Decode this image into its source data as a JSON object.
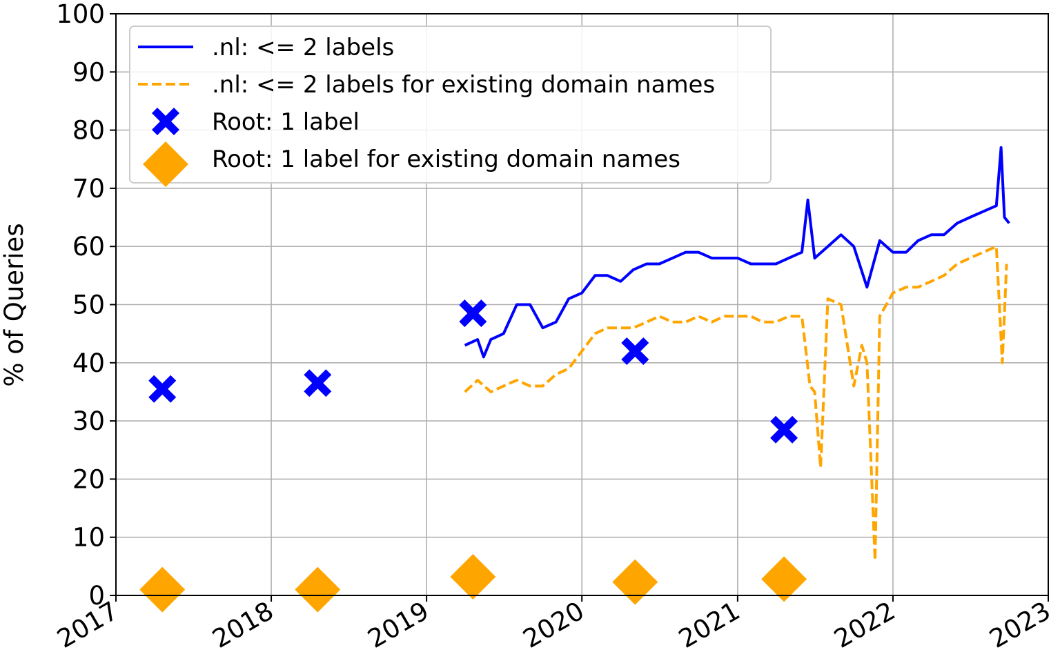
{
  "chart_data": {
    "type": "line",
    "xlabel": "",
    "ylabel": "% of Queries",
    "xlim": [
      "2017-01-01",
      "2023-01-01"
    ],
    "ylim": [
      0,
      100
    ],
    "grid": true,
    "legend_position": "top-left",
    "x_ticks": [
      "2017",
      "2018",
      "2019",
      "2020",
      "2021",
      "2022",
      "2023"
    ],
    "y_ticks": [
      "0",
      "10",
      "20",
      "30",
      "40",
      "50",
      "60",
      "70",
      "80",
      "90",
      "100"
    ],
    "series": [
      {
        "name": ".nl: <= 2 labels",
        "style": "solid-line",
        "color": "#0000ff",
        "points": [
          [
            "2019-04-01",
            43
          ],
          [
            "2019-05-01",
            44
          ],
          [
            "2019-05-15",
            41
          ],
          [
            "2019-06-01",
            44
          ],
          [
            "2019-07-01",
            45
          ],
          [
            "2019-08-01",
            50
          ],
          [
            "2019-09-01",
            50
          ],
          [
            "2019-10-01",
            46
          ],
          [
            "2019-11-01",
            47
          ],
          [
            "2019-12-01",
            51
          ],
          [
            "2020-01-01",
            52
          ],
          [
            "2020-02-01",
            55
          ],
          [
            "2020-03-01",
            55
          ],
          [
            "2020-04-01",
            54
          ],
          [
            "2020-05-01",
            56
          ],
          [
            "2020-06-01",
            57
          ],
          [
            "2020-07-01",
            57
          ],
          [
            "2020-08-01",
            58
          ],
          [
            "2020-09-01",
            59
          ],
          [
            "2020-10-01",
            59
          ],
          [
            "2020-11-01",
            58
          ],
          [
            "2020-12-01",
            58
          ],
          [
            "2021-01-01",
            58
          ],
          [
            "2021-02-01",
            57
          ],
          [
            "2021-03-01",
            57
          ],
          [
            "2021-04-01",
            57
          ],
          [
            "2021-05-01",
            58
          ],
          [
            "2021-06-01",
            59
          ],
          [
            "2021-06-15",
            68
          ],
          [
            "2021-07-01",
            58
          ],
          [
            "2021-08-01",
            60
          ],
          [
            "2021-09-01",
            62
          ],
          [
            "2021-10-01",
            60
          ],
          [
            "2021-11-01",
            53
          ],
          [
            "2021-12-01",
            61
          ],
          [
            "2022-01-01",
            59
          ],
          [
            "2022-02-01",
            59
          ],
          [
            "2022-03-01",
            61
          ],
          [
            "2022-04-01",
            62
          ],
          [
            "2022-05-01",
            62
          ],
          [
            "2022-06-01",
            64
          ],
          [
            "2022-07-01",
            65
          ],
          [
            "2022-08-01",
            66
          ],
          [
            "2022-09-01",
            67
          ],
          [
            "2022-09-12",
            77
          ],
          [
            "2022-09-20",
            65
          ],
          [
            "2022-10-01",
            64
          ]
        ]
      },
      {
        "name": ".nl: <= 2 labels for existing domain names",
        "style": "dashed-line",
        "color": "#ffa500",
        "points": [
          [
            "2019-04-01",
            35
          ],
          [
            "2019-05-01",
            37
          ],
          [
            "2019-06-01",
            35
          ],
          [
            "2019-07-01",
            36
          ],
          [
            "2019-08-01",
            37
          ],
          [
            "2019-09-01",
            36
          ],
          [
            "2019-10-01",
            36
          ],
          [
            "2019-11-01",
            38
          ],
          [
            "2019-12-01",
            39
          ],
          [
            "2020-01-01",
            42
          ],
          [
            "2020-02-01",
            45
          ],
          [
            "2020-03-01",
            46
          ],
          [
            "2020-04-01",
            46
          ],
          [
            "2020-05-01",
            46
          ],
          [
            "2020-06-01",
            47
          ],
          [
            "2020-07-01",
            48
          ],
          [
            "2020-08-01",
            47
          ],
          [
            "2020-09-01",
            47
          ],
          [
            "2020-10-01",
            48
          ],
          [
            "2020-11-01",
            47
          ],
          [
            "2020-12-01",
            48
          ],
          [
            "2021-01-01",
            48
          ],
          [
            "2021-02-01",
            48
          ],
          [
            "2021-03-01",
            47
          ],
          [
            "2021-04-01",
            47
          ],
          [
            "2021-05-01",
            48
          ],
          [
            "2021-06-01",
            48
          ],
          [
            "2021-06-20",
            36
          ],
          [
            "2021-07-01",
            35
          ],
          [
            "2021-07-15",
            22
          ],
          [
            "2021-08-01",
            51
          ],
          [
            "2021-09-01",
            50
          ],
          [
            "2021-10-01",
            36
          ],
          [
            "2021-10-20",
            43
          ],
          [
            "2021-11-01",
            40
          ],
          [
            "2021-11-20",
            6
          ],
          [
            "2021-12-01",
            48
          ],
          [
            "2022-01-01",
            52
          ],
          [
            "2022-02-01",
            53
          ],
          [
            "2022-03-01",
            53
          ],
          [
            "2022-04-01",
            54
          ],
          [
            "2022-05-01",
            55
          ],
          [
            "2022-06-01",
            57
          ],
          [
            "2022-07-01",
            58
          ],
          [
            "2022-08-01",
            59
          ],
          [
            "2022-09-01",
            60
          ],
          [
            "2022-09-15",
            40
          ],
          [
            "2022-09-25",
            57
          ]
        ]
      },
      {
        "name": "Root: 1 label",
        "style": "x-marker",
        "color": "#0000ff",
        "points": [
          [
            "2017-04-20",
            35.5
          ],
          [
            "2018-04-20",
            36.5
          ],
          [
            "2019-04-20",
            48.5
          ],
          [
            "2020-05-05",
            42
          ],
          [
            "2021-04-20",
            28.5
          ]
        ]
      },
      {
        "name": "Root: 1 label for existing domain names",
        "style": "diamond-marker",
        "color": "#ffa500",
        "points": [
          [
            "2017-04-20",
            1
          ],
          [
            "2018-04-20",
            1
          ],
          [
            "2019-04-20",
            3.2
          ],
          [
            "2020-05-05",
            2.3
          ],
          [
            "2021-04-20",
            2.8
          ]
        ]
      }
    ]
  }
}
